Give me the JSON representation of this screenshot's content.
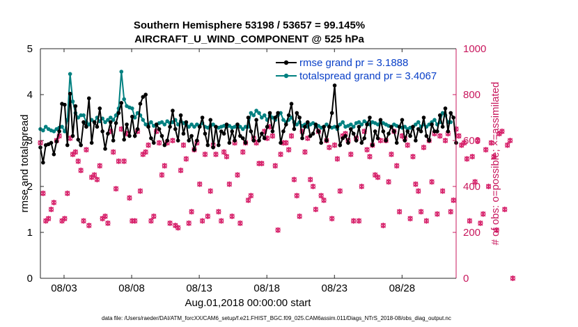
{
  "chart_data": {
    "type": "line",
    "title": [
      "Southern Hemisphere 53198 / 53657 = 99.145%",
      "AIRCRAFT_U_WIND_COMPONENT @ 525 hPa"
    ],
    "xlabel": "Aug.01,2018 00:00:00 start",
    "ylabel": "rmse and totalspread",
    "ylabel_right": "# of obs: o=possible; ×=assimilated",
    "footnote": "data file: /Users/raeder/DAI/ATM_forcXX/CAM6_setup/f.e21.FHIST_BGC.f09_025.CAM6assim.011/Diags_NTrS_2018-08/obs_diag_output.nc",
    "xlim": [
      1.25,
      32.0
    ],
    "ylim": [
      0,
      5
    ],
    "ylim_right": [
      0,
      1000
    ],
    "x_ticks": [
      3,
      8,
      13,
      18,
      23,
      28
    ],
    "x_tick_labels": [
      "08/03",
      "08/08",
      "08/13",
      "08/18",
      "08/23",
      "08/28"
    ],
    "y_ticks": [
      0,
      1,
      2,
      3,
      4,
      5
    ],
    "y_ticks_right": [
      0,
      200,
      400,
      600,
      800,
      1000
    ],
    "colors": {
      "rmse": "#000000",
      "spread": "#008080",
      "obs": "#d61f69",
      "obs_axis": "#c8175d",
      "legend_text": "#0a40c8"
    },
    "legend": [
      "rmse grand pr = 3.1888",
      "totalspread grand pr = 3.4067"
    ],
    "rmse": [
      2.85,
      2.52,
      2.9,
      2.92,
      2.95,
      2.7,
      2.98,
      3.2,
      3.8,
      3.78,
      2.9,
      4.02,
      3.1,
      3.75,
      3.02,
      2.9,
      3.4,
      3.3,
      3.92,
      2.95,
      3.4,
      3.3,
      3.7,
      3.2,
      2.82,
      3.15,
      3.4,
      3.0,
      3.38,
      3.6,
      3.82,
      3.02,
      3.35,
      3.1,
      3.52,
      3.1,
      3.25,
      3.8,
      3.95,
      4.0,
      3.3,
      3.05,
      2.95,
      3.35,
      3.25,
      3.1,
      2.9,
      3.0,
      3.3,
      3.65,
      3.25,
      3.0,
      3.55,
      3.15,
      3.4,
      3.0,
      3.1,
      2.8,
      3.0,
      3.3,
      3.5,
      3.15,
      2.9,
      3.45,
      2.85,
      3.3,
      2.9,
      3.2,
      3.15,
      3.35,
      2.95,
      3.2,
      3.0,
      3.35,
      3.1,
      3.05,
      2.95,
      3.5,
      3.2,
      3.0,
      3.45,
      3.0,
      3.15,
      3.05,
      3.3,
      3.6,
      3.2,
      3.5,
      3.6,
      2.95,
      3.2,
      3.35,
      3.55,
      3.8,
      3.25,
      3.6,
      3.5,
      3.05,
      3.3,
      3.4,
      3.1,
      3.15,
      3.35,
      3.2,
      2.95,
      3.3,
      3.0,
      3.3,
      3.6,
      4.2,
      3.3,
      2.9,
      3.05,
      3.1,
      2.95,
      3.25,
      3.15,
      3.0,
      3.3,
      2.95,
      3.05,
      3.35,
      3.5,
      2.9,
      3.2,
      3.05,
      3.45,
      3.2,
      3.0,
      3.15,
      3.3,
      3.2,
      2.95,
      3.3,
      3.45,
      3.0,
      3.2,
      3.1,
      3.3,
      3.0,
      3.25,
      3.2,
      3.5,
      3.1,
      3.0,
      3.35,
      3.2,
      3.2,
      3.55,
      3.3,
      3.7,
      3.2,
      3.6,
      3.5,
      2.95
    ],
    "spread": [
      3.25,
      3.22,
      3.3,
      3.25,
      3.22,
      3.2,
      3.25,
      3.28,
      3.3,
      3.2,
      3.45,
      4.45,
      3.85,
      3.6,
      3.5,
      3.55,
      3.55,
      3.4,
      3.35,
      3.45,
      3.4,
      3.5,
      3.42,
      3.48,
      3.4,
      3.45,
      3.5,
      3.45,
      3.55,
      3.7,
      4.5,
      3.9,
      3.75,
      3.72,
      3.7,
      3.5,
      3.6,
      3.55,
      3.45,
      3.35,
      3.35,
      3.4,
      3.32,
      3.35,
      3.38,
      3.4,
      3.35,
      3.42,
      3.38,
      3.4,
      3.45,
      3.35,
      3.42,
      3.38,
      3.35,
      3.3,
      3.35,
      3.3,
      3.35,
      3.32,
      3.38,
      3.3,
      3.28,
      3.32,
      3.35,
      3.3,
      3.28,
      3.3,
      3.32,
      3.3,
      3.32,
      3.28,
      3.3,
      3.35,
      3.3,
      3.25,
      3.3,
      3.3,
      3.6,
      3.55,
      3.65,
      3.6,
      3.5,
      3.55,
      3.45,
      3.55,
      3.5,
      3.45,
      3.55,
      3.6,
      3.45,
      3.4,
      3.45,
      3.5,
      3.4,
      3.35,
      3.4,
      3.32,
      3.35,
      3.3,
      3.35,
      3.38,
      3.3,
      3.32,
      3.28,
      3.3,
      3.35,
      3.3,
      3.28,
      3.3,
      3.25,
      3.35,
      3.4,
      3.3,
      3.32,
      3.35,
      3.3,
      3.38,
      3.4,
      3.35,
      3.42,
      3.38,
      3.35,
      3.4,
      3.38,
      3.35,
      3.4,
      3.38,
      3.35,
      3.32,
      3.3,
      3.35,
      3.32,
      3.3,
      3.28,
      3.3,
      3.25,
      3.28,
      3.3,
      3.35,
      3.4,
      3.3,
      3.35,
      3.3,
      3.35,
      3.4,
      3.45,
      3.35,
      3.4,
      3.6,
      3.55,
      3.4,
      3.4
    ],
    "obs_possible": [
      590,
      370,
      250,
      260,
      300,
      330,
      600,
      620,
      250,
      260,
      370,
      610,
      540,
      550,
      510,
      470,
      250,
      560,
      230,
      440,
      450,
      430,
      490,
      260,
      270,
      240,
      640,
      550,
      390,
      510,
      650,
      510,
      630,
      350,
      250,
      250,
      640,
      380,
      540,
      550,
      580,
      250,
      270,
      640,
      590,
      450,
      490,
      590,
      240,
      600,
      230,
      220,
      470,
      580,
      520,
      240,
      290,
      560,
      590,
      410,
      250,
      540,
      270,
      380,
      580,
      540,
      290,
      250,
      550,
      530,
      410,
      270,
      590,
      450,
      240,
      550,
      590,
      340,
      360,
      610,
      590,
      500,
      500,
      640,
      610,
      660,
      620,
      490,
      210,
      540,
      590,
      590,
      560,
      620,
      430,
      360,
      270,
      640,
      550,
      610,
      430,
      400,
      300,
      640,
      360,
      340,
      600,
      570,
      260,
      580,
      520,
      380,
      620,
      630,
      600,
      540,
      250,
      610,
      250,
      400,
      640,
      560,
      530,
      580,
      450,
      440,
      600,
      230,
      600,
      420,
      540,
      640,
      490,
      290,
      620,
      610,
      580,
      260,
      530,
      410,
      380,
      290,
      570,
      250,
      600,
      420,
      630,
      280,
      620,
      380,
      600,
      630,
      290,
      340,
      650,
      620,
      580,
      590,
      520,
      250,
      530,
      420,
      600,
      240,
      280,
      560,
      400,
      590,
      530,
      210,
      630,
      640,
      300,
      580,
      600,
      0
    ],
    "obs_assimilated": [
      590,
      370,
      250,
      260,
      300,
      330,
      600,
      620,
      250,
      260,
      370,
      610,
      540,
      550,
      510,
      470,
      250,
      560,
      230,
      440,
      450,
      430,
      490,
      260,
      270,
      240,
      640,
      550,
      390,
      510,
      650,
      510,
      630,
      350,
      250,
      250,
      640,
      380,
      540,
      550,
      580,
      250,
      270,
      640,
      590,
      450,
      490,
      590,
      240,
      600,
      230,
      220,
      470,
      580,
      520,
      240,
      290,
      560,
      590,
      410,
      250,
      540,
      270,
      380,
      580,
      540,
      290,
      250,
      550,
      530,
      410,
      270,
      590,
      450,
      240,
      550,
      590,
      340,
      360,
      610,
      590,
      500,
      500,
      640,
      610,
      660,
      620,
      490,
      210,
      540,
      590,
      590,
      560,
      620,
      430,
      360,
      270,
      640,
      550,
      610,
      430,
      400,
      300,
      640,
      360,
      340,
      600,
      570,
      260,
      580,
      520,
      380,
      620,
      630,
      600,
      540,
      250,
      610,
      250,
      400,
      640,
      560,
      530,
      580,
      450,
      440,
      600,
      230,
      600,
      420,
      540,
      640,
      490,
      290,
      620,
      610,
      580,
      260,
      530,
      410,
      380,
      290,
      570,
      250,
      600,
      420,
      630,
      280,
      620,
      380,
      600,
      630,
      290,
      340,
      650,
      620,
      580,
      590,
      520,
      250,
      530,
      420,
      600,
      240,
      280,
      560,
      400,
      590,
      530,
      210,
      630,
      640,
      300,
      580,
      600,
      0
    ]
  }
}
